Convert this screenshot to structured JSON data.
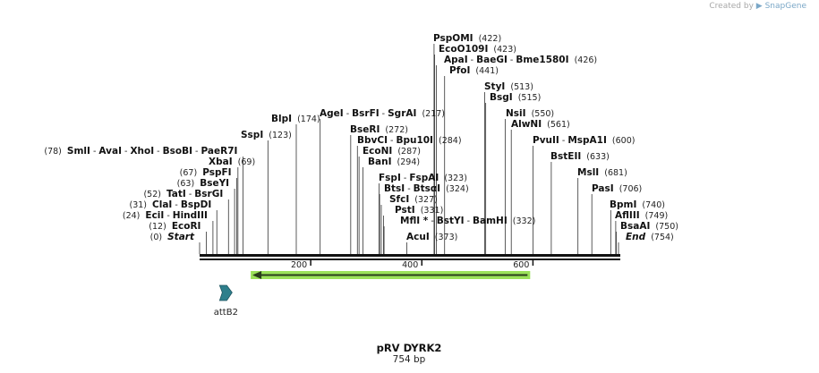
{
  "credit": {
    "prefix": "Created by",
    "brand": "SnapGene"
  },
  "plasmid": {
    "name": "pRV DYRK2",
    "length_label": "754 bp",
    "length": 754
  },
  "ruler": {
    "ticks": [
      "200",
      "400",
      "600"
    ]
  },
  "features": [
    {
      "name": "attB2",
      "type": "attB-site",
      "color": "#2e7f8c",
      "start": 36,
      "end": 58
    },
    {
      "name": "",
      "type": "arrow-reverse",
      "color": "#9be15a",
      "start": 92,
      "end": 595
    }
  ],
  "labels": [
    {
      "parts": [
        {
          "enz": "PspOMI"
        }
      ],
      "pos": "(422)",
      "site": 422
    },
    {
      "parts": [
        {
          "enz": "EcoO109I"
        }
      ],
      "pos": "(423)",
      "site": 423
    },
    {
      "parts": [
        {
          "enz": "ApaI"
        },
        {
          "sep": " - "
        },
        {
          "enz": "BaeGI"
        },
        {
          "sep": " - "
        },
        {
          "enz": "Bme1580I"
        }
      ],
      "pos": "(426)",
      "site": 426
    },
    {
      "parts": [
        {
          "enz": "PfoI"
        }
      ],
      "pos": "(441)",
      "site": 441
    },
    {
      "parts": [
        {
          "enz": "StyI"
        }
      ],
      "pos": "(513)",
      "site": 513
    },
    {
      "parts": [
        {
          "enz": "BsgI"
        }
      ],
      "pos": "(515)",
      "site": 515
    },
    {
      "parts": [
        {
          "enz": "BlpI"
        }
      ],
      "pos": "(174)",
      "site": 174
    },
    {
      "parts": [
        {
          "enz": "AgeI"
        },
        {
          "sep": " - "
        },
        {
          "enz": "BsrFI"
        },
        {
          "sep": " - "
        },
        {
          "enz": "SgrAI"
        }
      ],
      "pos": "(217)",
      "site": 217
    },
    {
      "parts": [
        {
          "enz": "NsiI"
        }
      ],
      "pos": "(550)",
      "site": 550
    },
    {
      "parts": [
        {
          "enz": "AlwNI"
        }
      ],
      "pos": "(561)",
      "site": 561
    },
    {
      "parts": [
        {
          "enz": "SspI"
        }
      ],
      "pos": "(123)",
      "site": 123
    },
    {
      "parts": [
        {
          "enz": "BseRI"
        }
      ],
      "pos": "(272)",
      "site": 272
    },
    {
      "parts": [
        {
          "enz": "BbvCI"
        },
        {
          "sep": " - "
        },
        {
          "enz": "Bpu10I"
        }
      ],
      "pos": "(284)",
      "site": 284
    },
    {
      "parts": [
        {
          "enz": "PvuII"
        },
        {
          "sep": " - "
        },
        {
          "enz": "MspA1I"
        }
      ],
      "pos": "(600)",
      "site": 600
    },
    {
      "parts": [
        {
          "enz": "SmlI"
        },
        {
          "sep": " - "
        },
        {
          "enz": "AvaI"
        },
        {
          "sep": " - "
        },
        {
          "enz": "XhoI"
        },
        {
          "sep": " - "
        },
        {
          "enz": "BsoBI"
        },
        {
          "sep": " - "
        },
        {
          "enz": "PaeR7I"
        }
      ],
      "pos": "(78)",
      "site": 78
    },
    {
      "parts": [
        {
          "enz": "EcoNI"
        }
      ],
      "pos": "(287)",
      "site": 287
    },
    {
      "parts": [
        {
          "enz": "BstEII"
        }
      ],
      "pos": "(633)",
      "site": 633
    },
    {
      "parts": [
        {
          "enz": "XbaI"
        }
      ],
      "pos": "(69)",
      "site": 69
    },
    {
      "parts": [
        {
          "enz": "BanI"
        }
      ],
      "pos": "(294)",
      "site": 294
    },
    {
      "parts": [
        {
          "enz": "PspFI"
        }
      ],
      "pos": "(67)",
      "site": 67
    },
    {
      "parts": [
        {
          "enz": "MslI"
        }
      ],
      "pos": "(681)",
      "site": 681
    },
    {
      "parts": [
        {
          "enz": "FspI"
        },
        {
          "sep": " - "
        },
        {
          "enz": "FspAI"
        }
      ],
      "pos": "(323)",
      "site": 323
    },
    {
      "parts": [
        {
          "enz": "BseYI"
        }
      ],
      "pos": "(63)",
      "site": 63
    },
    {
      "parts": [
        {
          "enz": "BtsI"
        },
        {
          "sep": " - "
        },
        {
          "enz": "BtsαI"
        }
      ],
      "pos": "(324)",
      "site": 324
    },
    {
      "parts": [
        {
          "enz": "PasI"
        }
      ],
      "pos": "(706)",
      "site": 706
    },
    {
      "parts": [
        {
          "enz": "TatI"
        },
        {
          "sep": " - "
        },
        {
          "enz": "BsrGI"
        }
      ],
      "pos": "(52)",
      "site": 52
    },
    {
      "parts": [
        {
          "enz": "SfcI"
        }
      ],
      "pos": "(327)",
      "site": 327
    },
    {
      "parts": [
        {
          "enz": "ClaI"
        },
        {
          "sep": " - "
        },
        {
          "enz": "BspDI"
        }
      ],
      "pos": "(31)",
      "site": 31
    },
    {
      "parts": [
        {
          "enz": "PstI"
        }
      ],
      "pos": "(331)",
      "site": 331
    },
    {
      "parts": [
        {
          "enz": "BpmI"
        }
      ],
      "pos": "(740)",
      "site": 740
    },
    {
      "parts": [
        {
          "enz": "EciI"
        },
        {
          "sep": " - "
        },
        {
          "enz": "HindIII"
        }
      ],
      "pos": "(24)",
      "site": 24
    },
    {
      "parts": [
        {
          "enz": "MflI *"
        },
        {
          "sep": " - "
        },
        {
          "enz": "BstYI"
        },
        {
          "sep": " - "
        },
        {
          "enz": "BamHI"
        }
      ],
      "pos": "(332)",
      "site": 332
    },
    {
      "parts": [
        {
          "enz": "AflIII"
        }
      ],
      "pos": "(749)",
      "site": 749
    },
    {
      "parts": [
        {
          "enz": "EcoRI"
        }
      ],
      "pos": "(12)",
      "site": 12
    },
    {
      "parts": [
        {
          "enz": "BsaAI"
        }
      ],
      "pos": "(750)",
      "site": 750
    },
    {
      "parts": [
        {
          "enz": "AcuI"
        }
      ],
      "pos": "(373)",
      "site": 373
    },
    {
      "parts": [
        {
          "enz": "Start",
          "italic": true
        }
      ],
      "pos": "(0)",
      "site": 0
    },
    {
      "parts": [
        {
          "enz": "End",
          "italic": true
        }
      ],
      "pos": "(754)",
      "site": 754
    }
  ]
}
